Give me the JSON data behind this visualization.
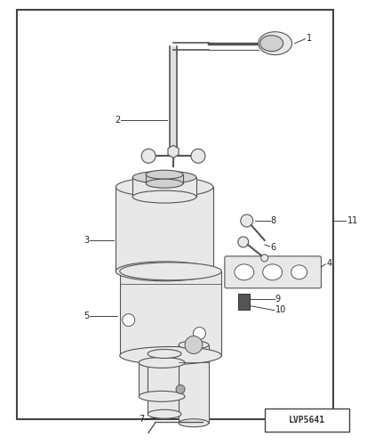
{
  "fig_width": 4.13,
  "fig_height": 5.0,
  "dpi": 100,
  "bg_color": "#ffffff",
  "border_color": "#444444",
  "part_fill": "#e8e8e8",
  "part_edge": "#555555",
  "label_color": "#222222",
  "code_box_text": "LVP5641",
  "label_fs": 7.0
}
